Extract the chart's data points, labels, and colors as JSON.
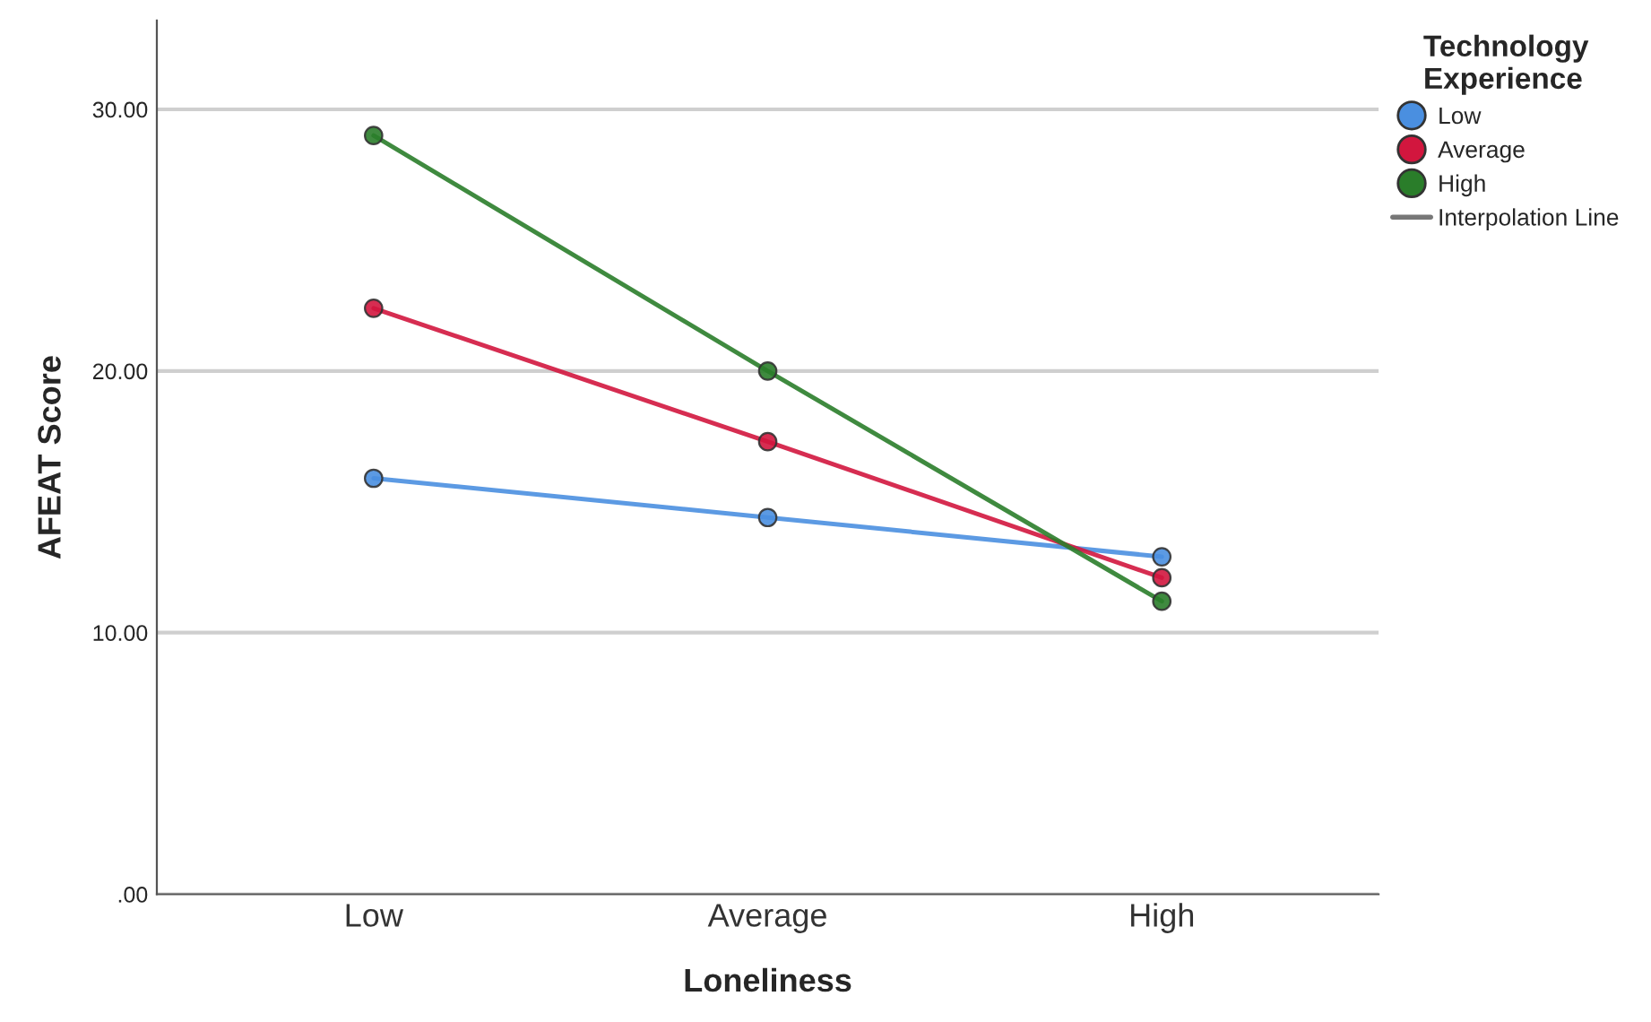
{
  "chart_data": {
    "type": "line",
    "xlabel": "Loneliness",
    "ylabel": "AFEAT Score",
    "legend_title": "Technology\nExperience",
    "categories": [
      "Low",
      "Average",
      "High"
    ],
    "series": [
      {
        "name": "Low",
        "color": "#4a8fe0",
        "values": [
          15.9,
          14.4,
          12.9
        ]
      },
      {
        "name": "Average",
        "color": "#d2163e",
        "values": [
          22.4,
          17.3,
          12.1
        ]
      },
      {
        "name": "High",
        "color": "#2a7d2a",
        "values": [
          29.0,
          20.0,
          11.2
        ]
      }
    ],
    "annotations": [
      "Interpolation Line"
    ],
    "ylim": [
      0,
      33.4
    ],
    "yticks": [
      {
        "value": 0,
        "label": ".00"
      },
      {
        "value": 10,
        "label": "10.00"
      },
      {
        "value": 20,
        "label": "20.00"
      },
      {
        "value": 30,
        "label": "30.00"
      }
    ],
    "grid": "y",
    "legend": "top right",
    "marker": "circle",
    "line_style": "solid"
  }
}
